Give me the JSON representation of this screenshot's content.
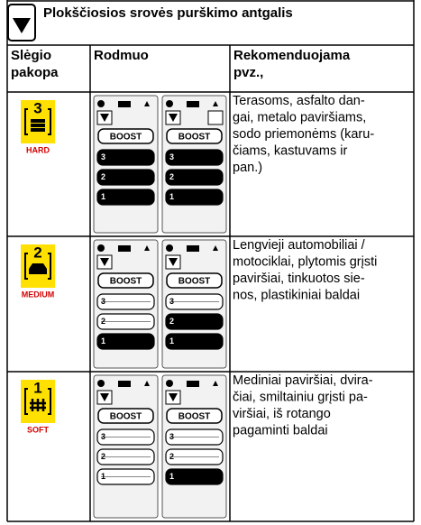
{
  "header": {
    "title": "Plokščiosios srovės purškimo antgalis"
  },
  "table": {
    "headers": [
      [
        "Slėgio",
        "pakopa"
      ],
      [
        "Rodmuo"
      ],
      [
        "Rekomenduojama",
        "pvz.,"
      ]
    ],
    "rows": [
      {
        "level": {
          "number": "3",
          "label": "HARD"
        },
        "displays": [
          {
            "button": "BOOST",
            "bars": [
              "3",
              "2",
              "1"
            ],
            "active": 3
          },
          {
            "button": "BOOST",
            "bars": [
              "3",
              "2",
              "1"
            ],
            "active": 3
          }
        ],
        "text": [
          "Terasoms, asfalto dan-",
          "gai, metalo paviršiams,",
          "sodo priemonėms (karu-",
          "čiams, kastuvams ir",
          "pan.)"
        ]
      },
      {
        "level": {
          "number": "2",
          "label": "MEDIUM"
        },
        "displays": [
          {
            "button": "BOOST",
            "bars": [
              "3",
              "2",
              "1"
            ],
            "active": 1
          },
          {
            "button": "BOOST",
            "bars": [
              "3",
              "2",
              "1"
            ],
            "active": 2
          }
        ],
        "text": [
          "Lengvieji automobiliai /",
          "motociklai, plytomis grįsti",
          "paviršiai, tinkuotos sie-",
          "nos, plastikiniai baldai"
        ]
      },
      {
        "level": {
          "number": "1",
          "label": "SOFT"
        },
        "displays": [
          {
            "button": "BOOST",
            "bars": [
              "3",
              "2",
              "1"
            ],
            "active": 0
          },
          {
            "button": "BOOST",
            "bars": [
              "3",
              "2",
              "1"
            ],
            "active": 1
          }
        ],
        "text": [
          "Mediniai paviršiai, dvira-",
          "čiai, smiltainiu grįsti pa-",
          "viršiai, iš rotango",
          "pagaminti baldai"
        ]
      }
    ]
  }
}
